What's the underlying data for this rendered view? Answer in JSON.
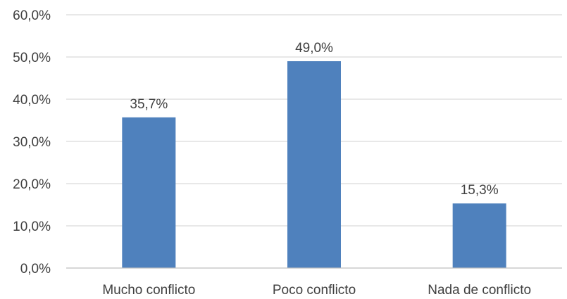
{
  "chart_data": {
    "type": "bar",
    "title": "",
    "xlabel": "",
    "ylabel": "",
    "categories": [
      "Mucho conflicto",
      "Poco conflicto",
      "Nada de conflicto"
    ],
    "values": [
      35.7,
      49.0,
      15.3
    ],
    "data_labels": [
      "35,7%",
      "49,0%",
      "15,3%"
    ],
    "ylim": [
      0,
      60
    ],
    "yticks": [
      0,
      10,
      20,
      30,
      40,
      50,
      60
    ],
    "ytick_labels": [
      "0,0%",
      "10,0%",
      "20,0%",
      "30,0%",
      "40,0%",
      "50,0%",
      "60,0%"
    ],
    "grid": true,
    "legend": "none",
    "bar_color": "#4f81bd"
  }
}
